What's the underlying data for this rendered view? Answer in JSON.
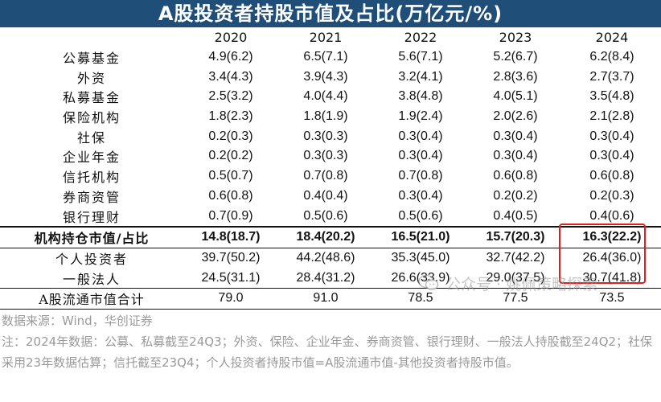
{
  "title": "A股投资者持股市值及占比(万亿元/%)",
  "years": [
    "2020",
    "2021",
    "2022",
    "2023",
    "2024"
  ],
  "rows": [
    {
      "label": "公募基金",
      "values": [
        "4.9(6.2)",
        "6.5(7.1)",
        "5.6(7.1)",
        "5.2(6.7)",
        "6.2(8.4)"
      ]
    },
    {
      "label": "外资",
      "values": [
        "3.4(4.3)",
        "3.9(4.3)",
        "3.2(4.1)",
        "2.8(3.6)",
        "2.7(3.7)"
      ]
    },
    {
      "label": "私募基金",
      "values": [
        "2.5(3.2)",
        "4.0(4.4)",
        "3.8(4.8)",
        "4.0(5.1)",
        "3.5(4.8)"
      ]
    },
    {
      "label": "保险机构",
      "values": [
        "1.8(2.3)",
        "1.8(1.9)",
        "1.9(2.4)",
        "2.0(2.6)",
        "2.1(2.8)"
      ]
    },
    {
      "label": "社保",
      "values": [
        "0.2(0.3)",
        "0.3(0.3)",
        "0.3(0.4)",
        "0.3(0.4)",
        "0.3(0.4)"
      ]
    },
    {
      "label": "企业年金",
      "values": [
        "0.2(0.2)",
        "0.3(0.3)",
        "0.3(0.4)",
        "0.3(0.4)",
        "0.3(0.4)"
      ]
    },
    {
      "label": "信托机构",
      "values": [
        "0.5(0.7)",
        "0.7(0.8)",
        "0.7(0.8)",
        "0.6(0.8)",
        "0.6(0.8)"
      ]
    },
    {
      "label": "券商资管",
      "values": [
        "0.6(0.8)",
        "0.4(0.4)",
        "0.3(0.4)",
        "0.2(0.2)",
        "0.2(0.3)"
      ]
    },
    {
      "label": "银行理财",
      "values": [
        "0.7(0.9)",
        "0.5(0.6)",
        "0.5(0.6)",
        "0.4(0.5)",
        "0.4(0.6)"
      ]
    }
  ],
  "summary": {
    "label": "机构持仓市值/占比",
    "values": [
      "14.8(18.7)",
      "18.4(20.2)",
      "16.5(21.0)",
      "15.7(20.3)",
      "16.3(22.2)"
    ]
  },
  "rows_after": [
    {
      "label": "个人投资者",
      "values": [
        "39.7(50.2)",
        "44.2(48.6)",
        "35.3(45.0)",
        "32.7(42.2)",
        "26.4(36.0)"
      ]
    },
    {
      "label": "一般法人",
      "values": [
        "24.5(31.1)",
        "28.4(31.2)",
        "26.6(33.9)",
        "29.0(37.5)",
        "30.7(41.8)"
      ]
    }
  ],
  "total": {
    "label": "A股流通市值合计",
    "values": [
      "79.0",
      "91.0",
      "78.5",
      "77.5",
      "73.5"
    ]
  },
  "notes": {
    "source": "数据来源：Wind，华创证券",
    "note": "注：2024年数据：公募、私募截至24Q3；外资、保险、企业年金、券商资管、银行理财、一般法人持股截至24Q2；社保采用23年数据估算；信托截至23Q4；个人投资者持股市值=A股流通市值-其他投资者持股市值。"
  },
  "watermark": {
    "text": "公众号 · 姚佩策略探索",
    "icon": "wechat-icon"
  },
  "colors": {
    "title_bg": "#1f4e79",
    "highlight": "#e02020",
    "note_text": "#9a9a9a"
  }
}
